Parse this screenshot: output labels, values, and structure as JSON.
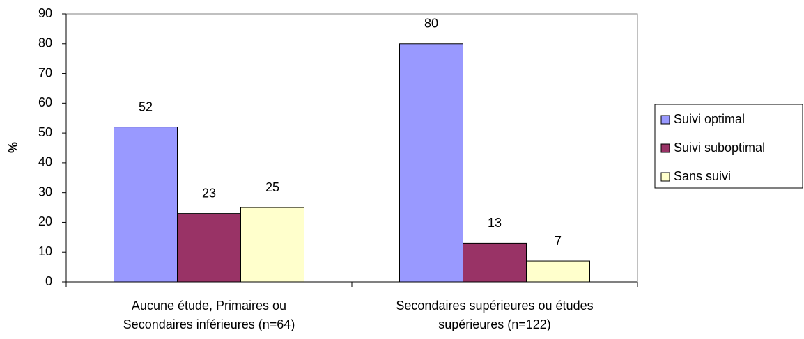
{
  "chart_data": {
    "type": "bar",
    "y_label": "%",
    "categories": [
      [
        "Aucune étude, Primaires ou",
        "Secondaires inférieures (n=64)"
      ],
      [
        "Secondaires supérieures ou études",
        "supérieures (n=122)"
      ]
    ],
    "series": [
      {
        "name": "Suivi optimal",
        "color": "#9999ff",
        "values": [
          52,
          80
        ]
      },
      {
        "name": "Suivi suboptimal",
        "color": "#993366",
        "values": [
          23,
          13
        ]
      },
      {
        "name": "Sans suivi",
        "color": "#ffffcc",
        "values": [
          25,
          7
        ]
      }
    ],
    "ylim": [
      0,
      90
    ],
    "yticks": [
      0,
      10,
      20,
      30,
      40,
      50,
      60,
      70,
      80,
      90
    ],
    "legend": "right"
  }
}
